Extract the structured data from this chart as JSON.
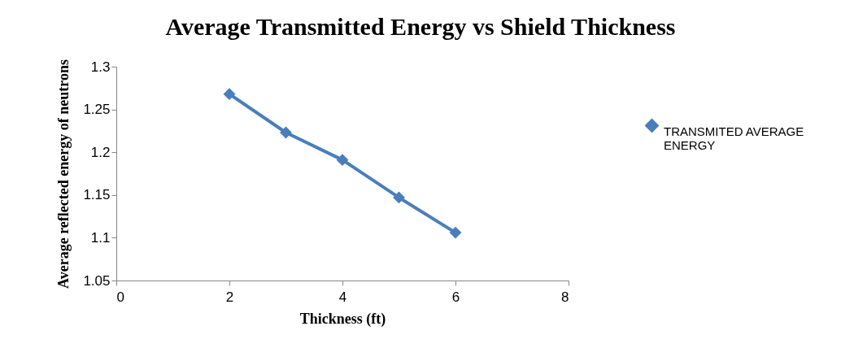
{
  "chart_data": {
    "type": "line",
    "title": "Average Transmitted Energy vs Shield Thickness",
    "xlabel": "Thickness (ft)",
    "ylabel": "Average reflected energy of neutrons",
    "x": [
      2,
      3,
      4,
      5,
      6
    ],
    "series": [
      {
        "name": "TRANSMITED AVERAGE ENERGY",
        "color": "#4a7ebb",
        "values": [
          1.268,
          1.223,
          1.191,
          1.147,
          1.106
        ]
      }
    ],
    "xlim": [
      0,
      8
    ],
    "xticks": [
      0,
      2,
      4,
      6,
      8
    ],
    "ylim": [
      1.05,
      1.3
    ],
    "yticks": [
      1.05,
      1.1,
      1.15,
      1.2,
      1.25,
      1.3
    ],
    "grid": false,
    "legend": "right",
    "marker": "diamond",
    "line_style": "solid"
  }
}
